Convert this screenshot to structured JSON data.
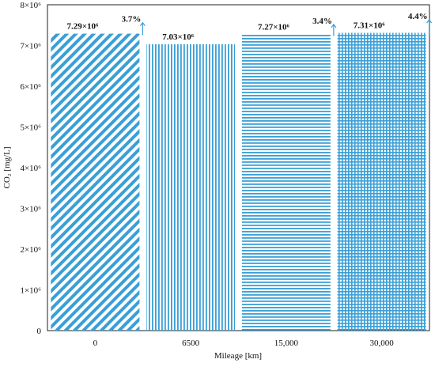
{
  "chart_data": {
    "type": "bar",
    "categories": [
      "0",
      "6500",
      "15,000",
      "30,000"
    ],
    "values": [
      7290000,
      7030000,
      7270000,
      7310000
    ],
    "error_up": [
      0.037,
      0,
      0.034,
      0.044
    ],
    "value_labels": [
      "7.29×10⁶",
      "7.03×10⁶",
      "7.27×10⁶",
      "7.31×10⁶"
    ],
    "error_labels": [
      "3.7%",
      "",
      "3.4%",
      "4.4%"
    ],
    "bar_patterns": [
      "diagonal-lines",
      "vertical-lines",
      "horizontal-lines",
      "grid"
    ],
    "bar_color": "#3a9fd6",
    "xlabel": "Mileage [km]",
    "ylabel": "CO₂ [mg/L]",
    "ylim": [
      0,
      8000000
    ],
    "yticks": [
      {
        "value": 0,
        "label": "0"
      },
      {
        "value": 1000000,
        "label": "1×10⁶"
      },
      {
        "value": 2000000,
        "label": "2×10⁶"
      },
      {
        "value": 3000000,
        "label": "3×10⁶"
      },
      {
        "value": 4000000,
        "label": "4×10⁶"
      },
      {
        "value": 5000000,
        "label": "5×10⁶"
      },
      {
        "value": 6000000,
        "label": "6×10⁶"
      },
      {
        "value": 7000000,
        "label": "7×10⁶"
      },
      {
        "value": 8000000,
        "label": "8×10⁶"
      }
    ],
    "grid": false,
    "legend": false
  }
}
